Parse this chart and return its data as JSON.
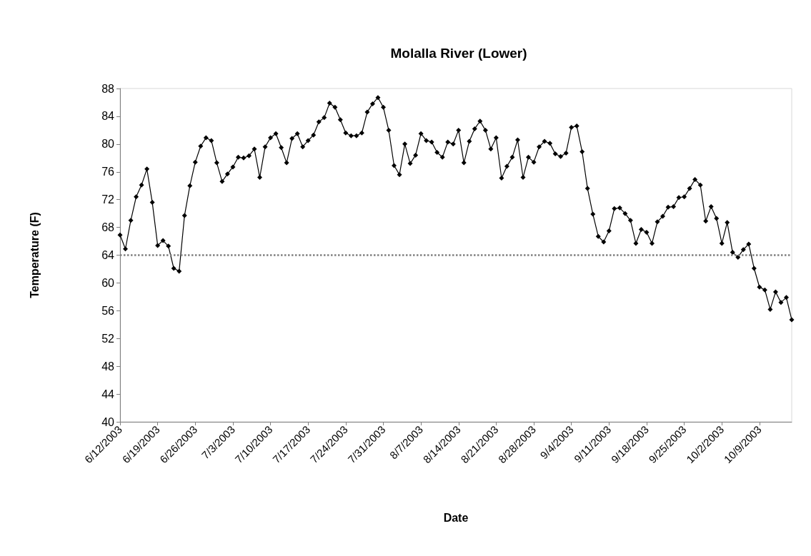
{
  "chart_data": {
    "type": "line",
    "title": "Molalla River (Lower)",
    "xlabel": "Date",
    "ylabel": "Temperature (F)",
    "xlim": [
      "2003-06-12",
      "2003-10-15"
    ],
    "xticks": [
      {
        "value": "2003-06-12",
        "label": "6/12/2003"
      },
      {
        "value": "2003-06-19",
        "label": "6/19/2003"
      },
      {
        "value": "2003-06-26",
        "label": "6/26/2003"
      },
      {
        "value": "2003-07-03",
        "label": "7/3/2003"
      },
      {
        "value": "2003-07-10",
        "label": "7/10/2003"
      },
      {
        "value": "2003-07-17",
        "label": "7/17/2003"
      },
      {
        "value": "2003-07-24",
        "label": "7/24/2003"
      },
      {
        "value": "2003-07-31",
        "label": "7/31/2003"
      },
      {
        "value": "2003-08-07",
        "label": "8/7/2003"
      },
      {
        "value": "2003-08-14",
        "label": "8/14/2003"
      },
      {
        "value": "2003-08-21",
        "label": "8/21/2003"
      },
      {
        "value": "2003-08-28",
        "label": "8/28/2003"
      },
      {
        "value": "2003-09-04",
        "label": "9/4/2003"
      },
      {
        "value": "2003-09-11",
        "label": "9/11/2003"
      },
      {
        "value": "2003-09-18",
        "label": "9/18/2003"
      },
      {
        "value": "2003-09-25",
        "label": "9/25/2003"
      },
      {
        "value": "2003-10-02",
        "label": "10/2/2003"
      },
      {
        "value": "2003-10-09",
        "label": "10/9/2003"
      }
    ],
    "ylim": [
      40,
      88
    ],
    "yticks": [
      40,
      44,
      48,
      52,
      56,
      60,
      64,
      68,
      72,
      76,
      80,
      84,
      88
    ],
    "grid": false,
    "marker": "diamond",
    "line_style": "solid",
    "ref_lines": [
      {
        "axis": "y",
        "value": 64,
        "color": "#808080",
        "line_style": "dotted"
      }
    ],
    "series": [
      {
        "color": "#000000",
        "x": [
          "2003-06-12",
          "2003-06-13",
          "2003-06-14",
          "2003-06-15",
          "2003-06-16",
          "2003-06-17",
          "2003-06-18",
          "2003-06-19",
          "2003-06-20",
          "2003-06-21",
          "2003-06-22",
          "2003-06-23",
          "2003-06-24",
          "2003-06-25",
          "2003-06-26",
          "2003-06-27",
          "2003-06-28",
          "2003-06-29",
          "2003-06-30",
          "2003-07-01",
          "2003-07-02",
          "2003-07-03",
          "2003-07-04",
          "2003-07-05",
          "2003-07-06",
          "2003-07-07",
          "2003-07-08",
          "2003-07-09",
          "2003-07-10",
          "2003-07-11",
          "2003-07-12",
          "2003-07-13",
          "2003-07-14",
          "2003-07-15",
          "2003-07-16",
          "2003-07-17",
          "2003-07-18",
          "2003-07-19",
          "2003-07-20",
          "2003-07-21",
          "2003-07-22",
          "2003-07-23",
          "2003-07-24",
          "2003-07-25",
          "2003-07-26",
          "2003-07-27",
          "2003-07-28",
          "2003-07-29",
          "2003-07-30",
          "2003-07-31",
          "2003-08-01",
          "2003-08-02",
          "2003-08-03",
          "2003-08-04",
          "2003-08-05",
          "2003-08-06",
          "2003-08-07",
          "2003-08-08",
          "2003-08-09",
          "2003-08-10",
          "2003-08-11",
          "2003-08-12",
          "2003-08-13",
          "2003-08-14",
          "2003-08-15",
          "2003-08-16",
          "2003-08-17",
          "2003-08-18",
          "2003-08-19",
          "2003-08-20",
          "2003-08-21",
          "2003-08-22",
          "2003-08-23",
          "2003-08-24",
          "2003-08-25",
          "2003-08-26",
          "2003-08-27",
          "2003-08-28",
          "2003-08-29",
          "2003-08-30",
          "2003-08-31",
          "2003-09-01",
          "2003-09-02",
          "2003-09-03",
          "2003-09-04",
          "2003-09-05",
          "2003-09-06",
          "2003-09-07",
          "2003-09-08",
          "2003-09-09",
          "2003-09-10",
          "2003-09-11",
          "2003-09-12",
          "2003-09-13",
          "2003-09-14",
          "2003-09-15",
          "2003-09-16",
          "2003-09-17",
          "2003-09-18",
          "2003-09-19",
          "2003-09-20",
          "2003-09-21",
          "2003-09-22",
          "2003-09-23",
          "2003-09-24",
          "2003-09-25",
          "2003-09-26",
          "2003-09-27",
          "2003-09-28",
          "2003-09-29",
          "2003-09-30",
          "2003-10-01",
          "2003-10-02",
          "2003-10-03",
          "2003-10-04",
          "2003-10-05",
          "2003-10-06",
          "2003-10-07",
          "2003-10-08",
          "2003-10-09",
          "2003-10-10",
          "2003-10-11",
          "2003-10-12",
          "2003-10-13",
          "2003-10-14",
          "2003-10-15"
        ],
        "values": [
          66.9,
          64.9,
          69.0,
          72.4,
          74.1,
          76.4,
          71.6,
          65.4,
          66.1,
          65.3,
          62.1,
          61.7,
          69.7,
          74.0,
          77.4,
          79.7,
          80.9,
          80.5,
          77.3,
          74.6,
          75.7,
          76.7,
          78.1,
          78.0,
          78.3,
          79.3,
          75.2,
          79.6,
          80.9,
          81.5,
          79.5,
          77.3,
          80.8,
          81.5,
          79.6,
          80.5,
          81.3,
          83.2,
          83.8,
          85.9,
          85.3,
          83.5,
          81.6,
          81.2,
          81.2,
          81.6,
          84.6,
          85.8,
          86.7,
          85.3,
          82.0,
          76.9,
          75.6,
          80.0,
          77.2,
          78.4,
          81.5,
          80.5,
          80.3,
          78.8,
          78.1,
          80.3,
          80.0,
          82.0,
          77.3,
          80.4,
          82.2,
          83.3,
          82.0,
          79.3,
          80.9,
          75.1,
          76.8,
          78.1,
          80.6,
          75.2,
          78.1,
          77.4,
          79.6,
          80.4,
          80.1,
          78.6,
          78.2,
          78.7,
          82.4,
          82.6,
          78.9,
          73.6,
          69.9,
          66.7,
          65.9,
          67.5,
          70.7,
          70.8,
          70.0,
          69.0,
          65.7,
          67.7,
          67.3,
          65.7,
          68.8,
          69.6,
          70.9,
          71.0,
          72.3,
          72.4,
          73.6,
          74.9,
          74.1,
          68.9,
          71.0,
          69.3,
          65.7,
          68.7,
          64.4,
          63.7,
          64.8,
          65.6,
          62.1,
          59.4,
          59.0,
          56.2,
          58.7,
          57.2,
          57.9,
          54.7
        ]
      }
    ]
  }
}
